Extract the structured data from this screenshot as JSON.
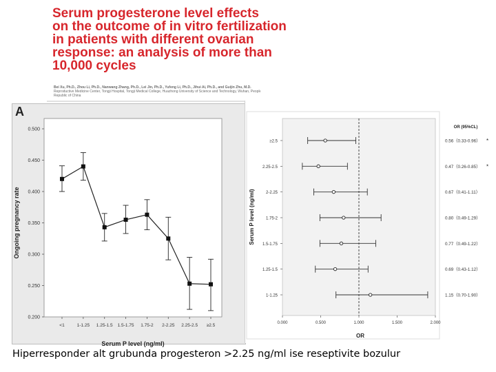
{
  "article": {
    "title_lines": [
      "Serum progesterone level effects",
      "on the outcome of in vitro fertilization",
      "in patients with different ovarian",
      "response: an analysis of more than",
      "10,000 cycles"
    ],
    "authors": "Bei Xu, Ph.D., Zhou Li, Ph.D., Nanwang Zhang, Ph.D., Lei Jin, Ph.D., Yufeng Li, Ph.D., Jihui Ai, Ph.D., and Guijin Zhu, M.D.",
    "affiliation_1": "Reproductive Medicine Center, Tongji Hospital, Tongji Medical College, Huazhong University of Science and Technology, Wuhan, People's",
    "affiliation_2": "Republic of China"
  },
  "caption": "Hiperresponder alt grubunda progesteron >2.25 ng/ml ise reseptivite bozulur",
  "panel_a_label": "A",
  "chart_data": [
    {
      "type": "line",
      "title": "",
      "xlabel": "Serum P level (ng/ml)",
      "ylabel": "Ongoing pregnancy rate",
      "categories": [
        "<1",
        "1-1.25",
        "1.25-1.5",
        "1.5-1.75",
        "1.75-2",
        "2-2.25",
        "2.25-2.5",
        "≥2.5"
      ],
      "values": [
        0.42,
        0.44,
        0.343,
        0.355,
        0.363,
        0.325,
        0.253,
        0.252
      ],
      "error_low": [
        0.4,
        0.418,
        0.321,
        0.333,
        0.339,
        0.291,
        0.212,
        0.21
      ],
      "error_high": [
        0.441,
        0.462,
        0.365,
        0.378,
        0.387,
        0.359,
        0.295,
        0.292
      ],
      "ylim": [
        0.2,
        0.5
      ],
      "yticks": [
        "0.200",
        "0.250",
        "0.300",
        "0.350",
        "0.400",
        "0.450",
        "0.500"
      ],
      "grid": false
    },
    {
      "type": "scatter",
      "title": "",
      "xlabel": "OR",
      "ylabel": "Serum P level (ng/ml)",
      "ci_header": "OR (95%CL)",
      "categories": [
        "≥2.5",
        "2.25-2.5",
        "2-2.25",
        "1.75-2",
        "1.5-1.75",
        "1.25-1.5",
        "1-1.25"
      ],
      "or": [
        0.56,
        0.47,
        0.67,
        0.8,
        0.77,
        0.69,
        1.15
      ],
      "ci_low": [
        0.33,
        0.26,
        0.41,
        0.49,
        0.49,
        0.43,
        0.7
      ],
      "ci_high": [
        0.96,
        0.85,
        1.11,
        1.29,
        1.22,
        1.12,
        1.9
      ],
      "ci_text": [
        "0.56（0.33-0.96）",
        "0.47（0.26-0.85）",
        "0.67（0.41-1.11）",
        "0.80（0.49-1.29）",
        "0.77（0.49-1.22）",
        "0.69（0.43-1.12）",
        "1.15（0.70-1.90）"
      ],
      "significance": [
        "*",
        "*",
        "",
        "",
        "",
        "",
        ""
      ],
      "xlim": [
        0,
        2
      ],
      "xticks": [
        "0.000",
        "0.500",
        "1.000",
        "1.500",
        "2.000"
      ],
      "reference_line": 1
    }
  ]
}
